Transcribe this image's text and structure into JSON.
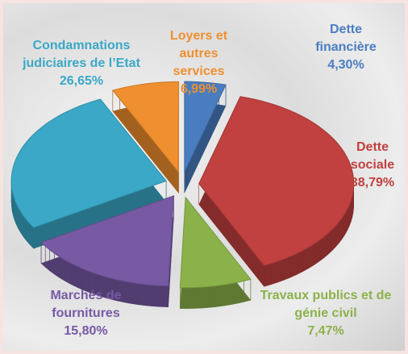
{
  "chart_data": {
    "type": "pie",
    "categories": [
      "Dette financière",
      "Dette sociale",
      "Travaux publics et de génie civil",
      "Marchés de fournitures",
      "Condamnations judiciaires de l’Etat",
      "Loyers et autres services"
    ],
    "values": [
      4.3,
      38.79,
      7.47,
      15.8,
      26.65,
      6.99
    ],
    "value_labels": [
      "4,30%",
      "38,79%",
      "7,47%",
      "15,80%",
      "26,65%",
      "6,99%"
    ],
    "colors": [
      "#4a7dc0",
      "#c0413f",
      "#8bb24a",
      "#7759a4",
      "#3aa8c6",
      "#ef8f2f"
    ]
  }
}
